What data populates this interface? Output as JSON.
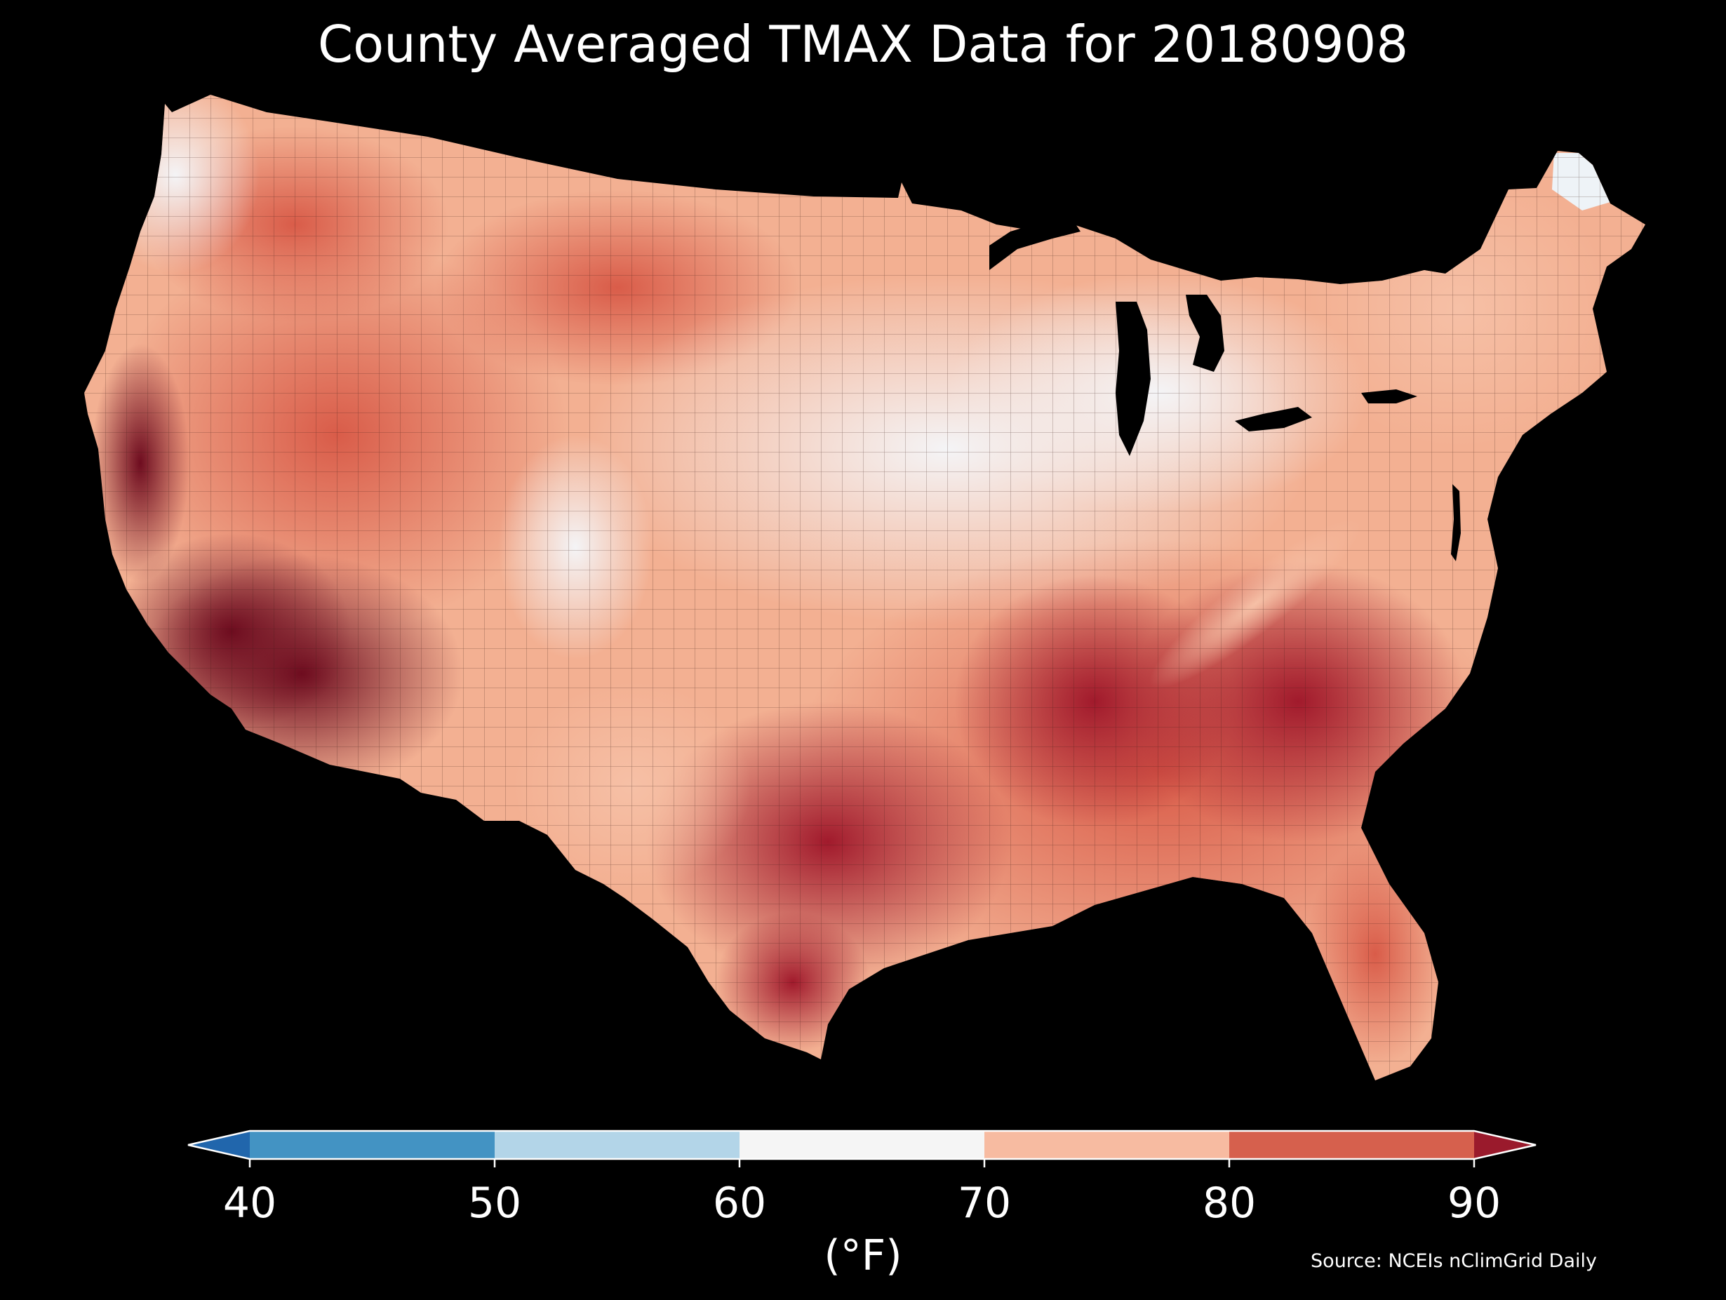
{
  "title": "County Averaged TMAX Data for 20180908",
  "source": "Source: NCEIs nClimGrid Daily",
  "colorbar": {
    "unit": "(°F)",
    "ticks": [
      "40",
      "50",
      "60",
      "70",
      "80",
      "90"
    ],
    "bins": [
      {
        "range": "<40",
        "color": "#2166ac"
      },
      {
        "range": "40-50",
        "color": "#4393c3"
      },
      {
        "range": "50-60",
        "color": "#b3d5e8"
      },
      {
        "range": "60-70",
        "color": "#f5f5f5"
      },
      {
        "range": "70-80",
        "color": "#f7bba1"
      },
      {
        "range": "80-90",
        "color": "#d6604d"
      },
      {
        "range": ">90",
        "color": "#9a1a2c"
      }
    ]
  },
  "regions": [
    {
      "name": "pacific-northwest-coast",
      "tmax_band": "60-70"
    },
    {
      "name": "california-central-valley",
      "tmax_band": ">90"
    },
    {
      "name": "desert-southwest",
      "tmax_band": ">90"
    },
    {
      "name": "great-basin",
      "tmax_band": "80-90"
    },
    {
      "name": "northern-rockies",
      "tmax_band": "70-80"
    },
    {
      "name": "wyoming-colorado-front-range",
      "tmax_band": "60-70"
    },
    {
      "name": "northern-plains",
      "tmax_band": "80-90"
    },
    {
      "name": "central-plains-midwest",
      "tmax_band": "60-70"
    },
    {
      "name": "great-lakes",
      "tmax_band": "60-70"
    },
    {
      "name": "northeast",
      "tmax_band": "70-80"
    },
    {
      "name": "northern-maine",
      "tmax_band": "60-70"
    },
    {
      "name": "southeast",
      "tmax_band": "80-90"
    },
    {
      "name": "carolinas-georgia",
      "tmax_band": ">90"
    },
    {
      "name": "appalachians",
      "tmax_band": "70-80"
    },
    {
      "name": "gulf-coast-texas",
      "tmax_band": ">90"
    },
    {
      "name": "west-texas",
      "tmax_band": "70-80"
    },
    {
      "name": "florida",
      "tmax_band": "80-90"
    }
  ]
}
